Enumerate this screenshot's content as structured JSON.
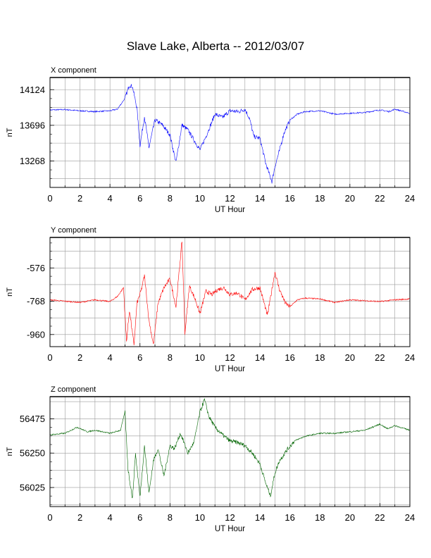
{
  "title": "Slave Lake, Alberta -- 2012/03/07",
  "chart_data": [
    {
      "type": "line",
      "panel_title": "X component",
      "xlabel": "UT Hour",
      "ylabel": "nT",
      "xlim": [
        0,
        24
      ],
      "ylim": [
        12950,
        14270
      ],
      "x_ticks": [
        "0",
        "2",
        "4",
        "6",
        "8",
        "10",
        "12",
        "14",
        "16",
        "18",
        "20",
        "22",
        "24"
      ],
      "y_ticks": [
        "13268",
        "13696",
        "14124"
      ],
      "y_tick_values": [
        13268,
        13696,
        14124
      ],
      "grid": true,
      "color": "#0000ff",
      "series": [
        {
          "x": [
            0,
            1,
            2,
            3,
            4,
            4.5,
            5.0,
            5.3,
            5.5,
            5.8,
            6.0,
            6.3,
            6.6,
            7.0,
            7.5,
            8.0,
            8.4,
            8.8,
            9.2,
            9.6,
            10.0,
            10.4,
            11.0,
            11.5,
            12.0,
            12.6,
            13.0,
            13.3,
            13.6,
            14.0,
            14.4,
            14.8,
            15.0,
            15.3,
            15.6,
            16.0,
            16.5,
            17.0,
            18.0,
            19.0,
            20.0,
            21.0,
            22.0,
            22.6,
            23.0,
            24.0
          ],
          "y": [
            13880,
            13885,
            13870,
            13860,
            13870,
            13890,
            14020,
            14180,
            14160,
            13900,
            13450,
            13800,
            13430,
            13760,
            13700,
            13580,
            13250,
            13700,
            13640,
            13520,
            13400,
            13560,
            13830,
            13790,
            13870,
            13860,
            13890,
            13780,
            13560,
            13540,
            13230,
            13020,
            13200,
            13390,
            13600,
            13760,
            13830,
            13860,
            13870,
            13830,
            13840,
            13850,
            13880,
            13860,
            13890,
            13840
          ]
        }
      ]
    },
    {
      "type": "line",
      "panel_title": "Y component",
      "xlabel": "UT Hour",
      "ylabel": "nT",
      "xlim": [
        0,
        24
      ],
      "ylim": [
        -1030,
        -400
      ],
      "x_ticks": [
        "0",
        "2",
        "4",
        "6",
        "8",
        "10",
        "12",
        "14",
        "16",
        "18",
        "20",
        "22",
        "24"
      ],
      "y_ticks": [
        "-576",
        "-768",
        "-960"
      ],
      "y_tick_values": [
        -576,
        -768,
        -960
      ],
      "grid": true,
      "color": "#ff0000",
      "series": [
        {
          "x": [
            0,
            1,
            2,
            3,
            4,
            4.5,
            4.9,
            5.1,
            5.3,
            5.6,
            5.8,
            6.1,
            6.3,
            6.6,
            6.9,
            7.2,
            7.6,
            8.0,
            8.4,
            8.8,
            9.0,
            9.3,
            9.7,
            10.0,
            10.4,
            10.8,
            11.2,
            11.6,
            12.0,
            12.5,
            13.0,
            13.5,
            14.0,
            14.5,
            15.0,
            15.3,
            15.7,
            16.0,
            16.5,
            17.0,
            18.0,
            19.0,
            20.0,
            21.0,
            22.0,
            23.0,
            24.0
          ],
          "y": [
            -760,
            -768,
            -775,
            -760,
            -770,
            -740,
            -690,
            -1000,
            -820,
            -1020,
            -780,
            -700,
            -620,
            -880,
            -1020,
            -780,
            -690,
            -640,
            -800,
            -420,
            -950,
            -680,
            -760,
            -840,
            -710,
            -730,
            -700,
            -690,
            -730,
            -720,
            -760,
            -700,
            -690,
            -850,
            -600,
            -700,
            -780,
            -800,
            -760,
            -750,
            -755,
            -775,
            -760,
            -765,
            -770,
            -760,
            -755
          ]
        }
      ]
    },
    {
      "type": "line",
      "panel_title": "Z component",
      "xlabel": "UT Hour",
      "ylabel": "nT",
      "xlim": [
        0,
        24
      ],
      "ylim": [
        55900,
        56620
      ],
      "x_ticks": [
        "0",
        "2",
        "4",
        "6",
        "8",
        "10",
        "12",
        "14",
        "16",
        "18",
        "20",
        "22",
        "24"
      ],
      "y_ticks": [
        "56025",
        "56250",
        "56475"
      ],
      "y_tick_values": [
        56025,
        56250,
        56475
      ],
      "grid": true,
      "color": "#006400",
      "series": [
        {
          "x": [
            0,
            1,
            1.8,
            2.5,
            3,
            4,
            4.7,
            5.0,
            5.2,
            5.5,
            5.7,
            6.0,
            6.3,
            6.6,
            6.9,
            7.2,
            7.6,
            8.0,
            8.3,
            8.7,
            9.2,
            9.6,
            10.0,
            10.3,
            10.6,
            11.0,
            11.5,
            12.0,
            12.5,
            13.0,
            13.5,
            14.0,
            14.4,
            14.7,
            15.0,
            15.3,
            15.8,
            16.3,
            17.0,
            18.0,
            19.0,
            20.0,
            21.0,
            22.0,
            22.5,
            23.0,
            24.0
          ],
          "y": [
            56370,
            56380,
            56420,
            56390,
            56400,
            56380,
            56400,
            56520,
            56150,
            55950,
            56250,
            55960,
            56300,
            55990,
            56200,
            56280,
            56100,
            56300,
            56280,
            56380,
            56250,
            56320,
            56520,
            56600,
            56490,
            56420,
            56370,
            56330,
            56320,
            56300,
            56250,
            56180,
            56050,
            55970,
            56120,
            56200,
            56270,
            56330,
            56360,
            56380,
            56380,
            56390,
            56400,
            56440,
            56410,
            56430,
            56400
          ]
        }
      ]
    }
  ]
}
